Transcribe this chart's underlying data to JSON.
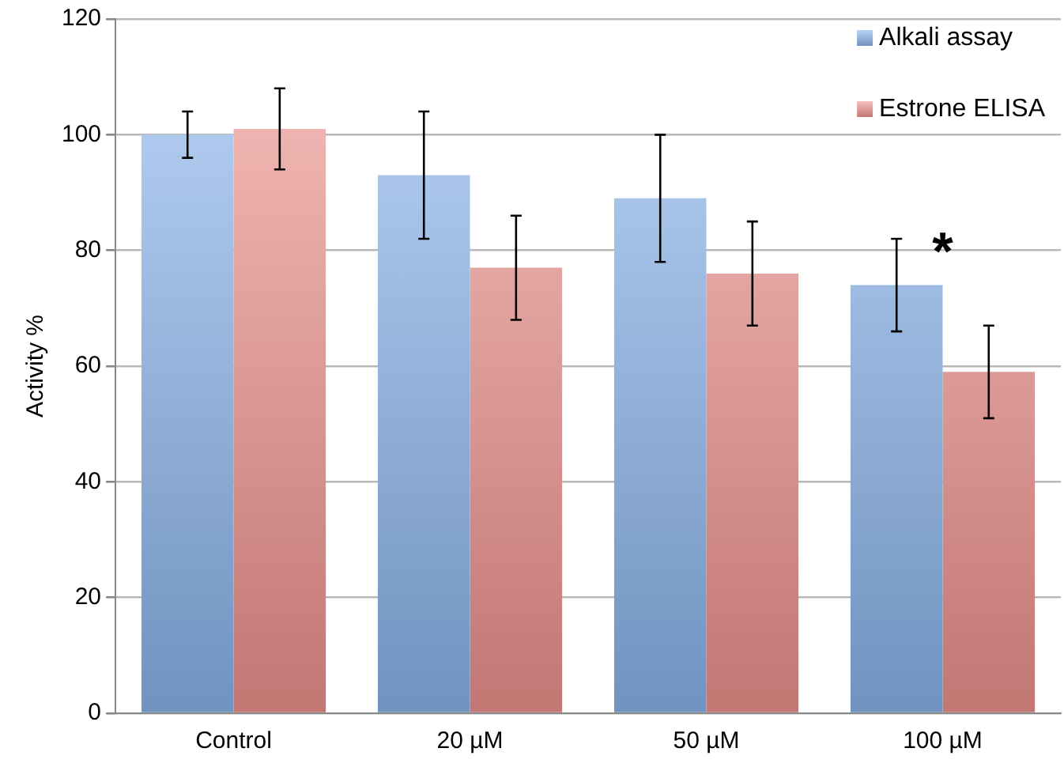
{
  "chart_data": {
    "type": "bar",
    "ylabel": "Activity %",
    "categories": [
      "Control",
      "20 µM",
      "50 µM",
      "100 µM"
    ],
    "series": [
      {
        "name": "Alkali assay",
        "color": "#8cb8f0",
        "values": [
          100,
          93,
          89,
          74
        ],
        "errors": [
          [
            96,
            104
          ],
          [
            82,
            104
          ],
          [
            78,
            100
          ],
          [
            66,
            82
          ]
        ]
      },
      {
        "name": "Estrone ELISA",
        "color": "#f29590",
        "values": [
          101,
          77,
          76,
          59
        ],
        "errors": [
          [
            94,
            108
          ],
          [
            68,
            86
          ],
          [
            67,
            85
          ],
          [
            51,
            67
          ]
        ]
      }
    ],
    "ylim": [
      0,
      120
    ],
    "yticks": [
      0,
      20,
      40,
      60,
      80,
      100,
      120
    ],
    "grid": "y",
    "legend": "top right",
    "annotations": [
      "*"
    ]
  }
}
